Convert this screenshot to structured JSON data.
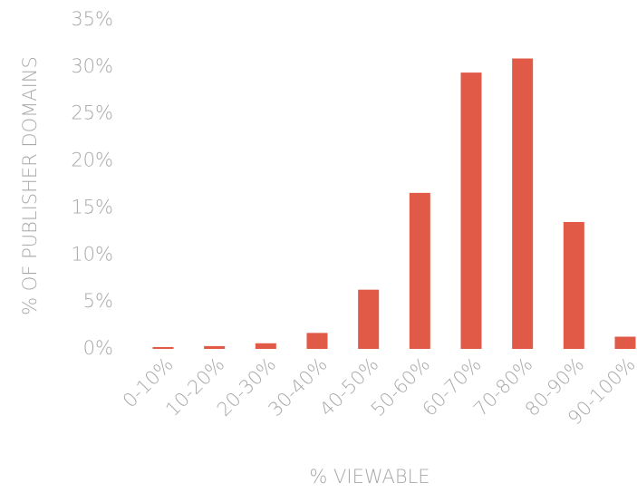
{
  "chart_data": {
    "type": "bar",
    "x_label": "% VIEWABLE",
    "y_label": "% OF PUBLISHER DOMAINS",
    "categories": [
      "0-10%",
      "10-20%",
      "20-30%",
      "30-40%",
      "40-50%",
      "50-60%",
      "60-70%",
      "70-80%",
      "80-90%",
      "90-100%"
    ],
    "values": [
      0.2,
      0.3,
      0.6,
      1.7,
      6.3,
      16.6,
      29.4,
      30.9,
      13.5,
      1.3
    ],
    "color": "#e05a47",
    "ylim": [
      0,
      35
    ],
    "yticks": [
      {
        "value": 0,
        "label": "0%"
      },
      {
        "value": 5,
        "label": "5%"
      },
      {
        "value": 10,
        "label": "10%"
      },
      {
        "value": 15,
        "label": "15%"
      },
      {
        "value": 20,
        "label": "20%"
      },
      {
        "value": 25,
        "label": "25%"
      },
      {
        "value": 30,
        "label": "30%"
      },
      {
        "value": 35,
        "label": "35%"
      }
    ],
    "grid": false
  }
}
